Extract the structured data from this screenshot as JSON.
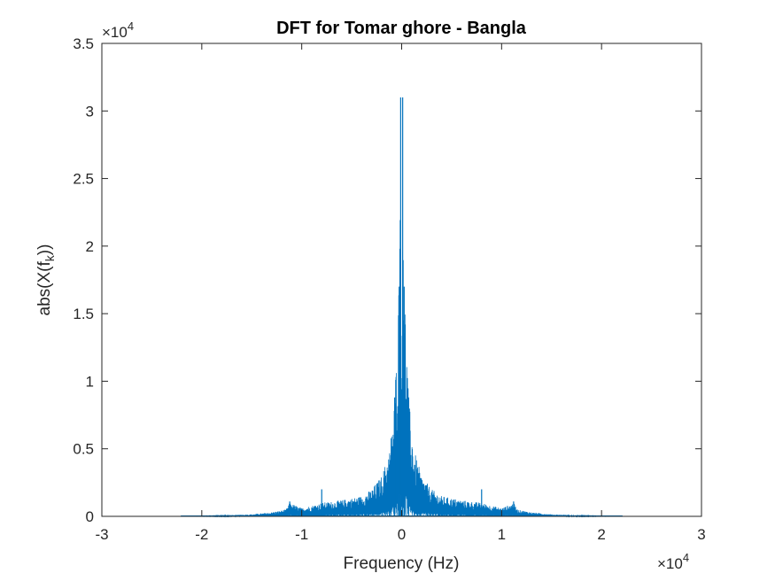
{
  "chart_data": {
    "type": "line",
    "title": "DFT for Tomar ghore - Bangla",
    "xlabel": "Frequency (Hz)",
    "ylabel_main": "abs(X(f",
    "ylabel_sub": "k",
    "ylabel_tail": "))",
    "x_exponent_label": "×10",
    "x_exponent_power": "4",
    "y_exponent_label": "×10",
    "y_exponent_power": "4",
    "xlim": [
      -3,
      3
    ],
    "ylim": [
      0,
      3.5
    ],
    "x_units_note": "x values in units of 10^4 Hz, y values in units of 10^4",
    "xticks": [
      "-3",
      "-2",
      "-1",
      "0",
      "1",
      "2",
      "3"
    ],
    "yticks": [
      "0",
      "0.5",
      "1",
      "1.5",
      "2",
      "2.5",
      "3",
      "3.5"
    ],
    "grid": false,
    "line_color": "#0072BD",
    "series": [
      {
        "envelope_x": [
          -2.21,
          -1.8,
          -1.5,
          -1.3,
          -1.16,
          -1.12,
          -1.0,
          -0.8,
          -0.6,
          -0.4,
          -0.3,
          -0.2,
          -0.12,
          -0.07,
          -0.03,
          -0.01,
          0.0,
          0.01,
          0.03,
          0.07,
          0.12,
          0.2,
          0.3,
          0.4,
          0.6,
          0.8,
          1.0,
          1.12,
          1.16,
          1.3,
          1.5,
          1.8,
          2.21
        ],
        "envelope_y": [
          0.0,
          0.005,
          0.015,
          0.03,
          0.05,
          0.1,
          0.06,
          0.1,
          0.12,
          0.15,
          0.2,
          0.3,
          0.5,
          0.88,
          1.7,
          3.1,
          0.6,
          3.1,
          1.7,
          0.88,
          0.5,
          0.3,
          0.2,
          0.15,
          0.12,
          0.1,
          0.06,
          0.1,
          0.05,
          0.03,
          0.015,
          0.005,
          0.0
        ],
        "peaks": [
          {
            "x": -0.01,
            "y": 3.1
          },
          {
            "x": 0.01,
            "y": 3.1
          },
          {
            "x": -0.025,
            "y": 1.7
          },
          {
            "x": 0.025,
            "y": 1.7
          },
          {
            "x": -0.07,
            "y": 0.88
          },
          {
            "x": 0.07,
            "y": 0.88
          },
          {
            "x": -0.8,
            "y": 0.2
          },
          {
            "x": 0.8,
            "y": 0.2
          },
          {
            "x": -1.12,
            "y": 0.11
          },
          {
            "x": 1.12,
            "y": 0.11
          }
        ]
      }
    ]
  }
}
